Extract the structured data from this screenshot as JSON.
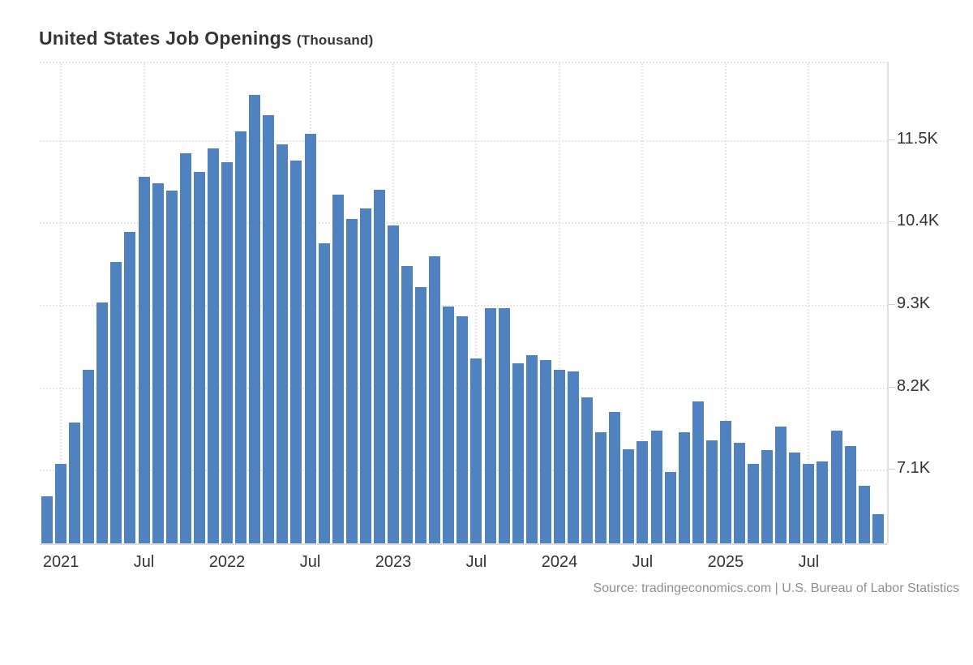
{
  "title": {
    "main": "United States Job Openings",
    "unit": "(Thousand)"
  },
  "source": "Source: tradingeconomics.com | U.S. Bureau of Labor Statistics",
  "colors": {
    "bar": "#4f82bf",
    "gridline": "#e6e6e6",
    "axis_line": "#dedede",
    "tick_label": "#333333",
    "title_text": "#363636",
    "source_text": "#8f8f8f"
  },
  "chart_data": {
    "type": "bar",
    "title": "United States Job Openings",
    "subtitle_unit": "Thousand",
    "grid": "dotted",
    "legend_position": "none",
    "y_axis": {
      "side": "right",
      "tick_values": [
        11500,
        10400,
        9300,
        8200,
        7100
      ],
      "tick_labels": [
        "11.5K",
        "10.4K",
        "9.3K",
        "8.2K",
        "7.1K"
      ],
      "range_top": 12535,
      "range_bottom": 6110
    },
    "x_axis": {
      "tick_month_indices": [
        1,
        7,
        13,
        19,
        25,
        31,
        37,
        43,
        49,
        55
      ],
      "tick_labels": [
        "2021",
        "Jul",
        "2022",
        "Jul",
        "2023",
        "Jul",
        "2024",
        "Jul",
        "2025",
        "Jul"
      ]
    },
    "x": [
      "Dec 2020",
      "Jan 2021",
      "Feb 2021",
      "Mar 2021",
      "Apr 2021",
      "May 2021",
      "Jun 2021",
      "Jul 2021",
      "Aug 2021",
      "Sep 2021",
      "Oct 2021",
      "Nov 2021",
      "Dec 2021",
      "Jan 2022",
      "Feb 2022",
      "Mar 2022",
      "Apr 2022",
      "May 2022",
      "Jun 2022",
      "Jul 2022",
      "Aug 2022",
      "Sep 2022",
      "Oct 2022",
      "Nov 2022",
      "Dec 2022",
      "Jan 2023",
      "Feb 2023",
      "Mar 2023",
      "Apr 2023",
      "May 2023",
      "Jun 2023",
      "Jul 2023",
      "Aug 2023",
      "Sep 2023",
      "Oct 2023",
      "Nov 2023",
      "Dec 2023",
      "Jan 2024",
      "Feb 2024",
      "Mar 2024",
      "Apr 2024",
      "May 2024",
      "Jun 2024",
      "Jul 2024",
      "Aug 2024",
      "Sep 2024",
      "Oct 2024",
      "Nov 2024",
      "Dec 2024",
      "Jan 2025",
      "Feb 2025",
      "Mar 2025",
      "Apr 2025",
      "May 2025",
      "Jun 2025",
      "Jul 2025",
      "Aug 2025",
      "Sep 2025",
      "Oct 2025",
      "Nov 2025",
      "Dec 2025"
    ],
    "values": [
      6760,
      7190,
      7740,
      8450,
      9340,
      9890,
      10290,
      11020,
      10930,
      10840,
      11330,
      11090,
      11400,
      11220,
      11630,
      12110,
      11840,
      11450,
      11240,
      11590,
      10130,
      10780,
      10460,
      10600,
      10850,
      10370,
      9830,
      9550,
      9960,
      9290,
      9160,
      8600,
      9270,
      9270,
      8530,
      8640,
      8580,
      8450,
      8430,
      8080,
      7610,
      7880,
      7390,
      7490,
      7630,
      7080,
      7610,
      8020,
      7500,
      7760,
      7470,
      7190,
      7380,
      7690,
      7340,
      7190,
      7220,
      7640,
      7430,
      6900,
      6520
    ]
  }
}
